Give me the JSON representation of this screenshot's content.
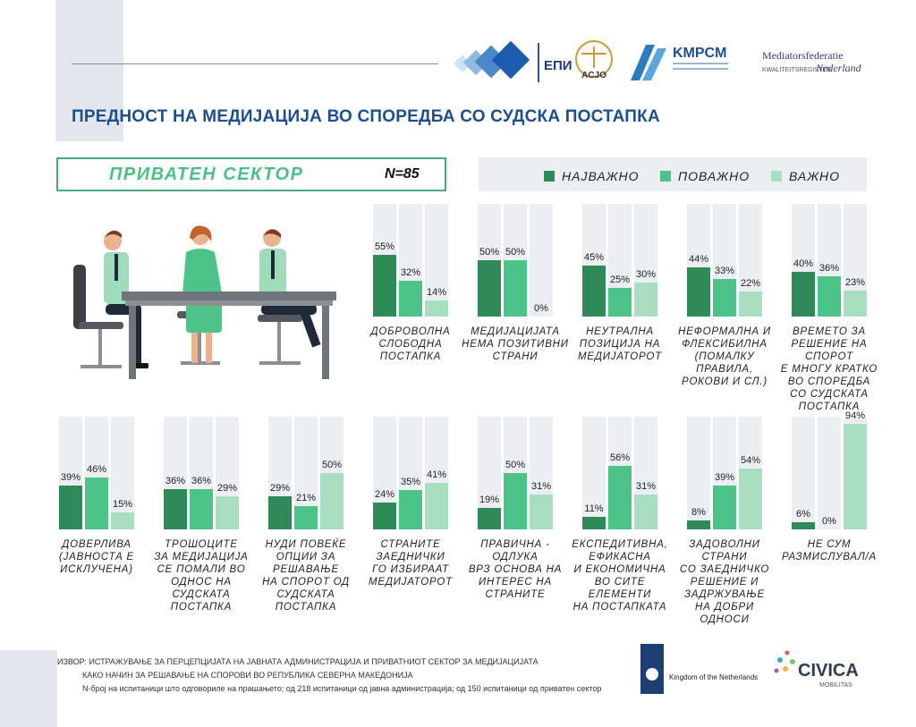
{
  "title": "ПРЕДНОСТ НА МЕДИЈАЦИЈА ВО СПОРЕДБА СО СУДСКА ПОСТАПКА",
  "sector": {
    "label": "ПРИВАТЕН СЕКТОР",
    "n": "N=85"
  },
  "logos": {
    "epi": "ЕПИ",
    "acjo": "ACJO",
    "kmrsm": "KMPCM",
    "mediators_1": "Mediatorsfederatie",
    "mediators_2": "Nederland",
    "mediators_3": "KWALITEITSREGISTER",
    "kingdom": "Kingdom of the Netherlands",
    "civica": "CIVICA",
    "mobilitas": "MOBILITAS"
  },
  "colors": {
    "najvazno": "#2e8b57",
    "povazno": "#4cc387",
    "vazno": "#a8dfc3",
    "track": "#eceef1",
    "title": "#1f4e8c"
  },
  "footer": {
    "source_label": "ИЗВОР:",
    "line1": "ИСТРАЖУВАЊЕ ЗА ПЕРЦЕПЦИЈАТА НА ЈАВНАТА АДМИНИСТРАЦИЈА И ПРИВАТНИОТ СЕКТОР ЗА МЕДИЈАЦИЈАТА",
    "line2": "КАКО НАЧИН ЗА РЕШАВАЊЕ НА СПОРОВИ ВО РЕПУБЛИКА СЕВЕРНА МАКЕДОНИЈА",
    "line3": "N-број на испитаници што одговориле на прашањето; од 218 испитаници од јавна администрација; од 150 испитаници од приватен сектор"
  },
  "chart_data": {
    "type": "bar",
    "ylim": [
      0,
      100
    ],
    "series_names": [
      "НАЈВАЖНО",
      "ПОВАЖНО",
      "ВАЖНО"
    ],
    "groups": [
      {
        "label": [
          "ДОБРОВОЛНА",
          "СЛОБОДНА",
          "ПОСТАПКА"
        ],
        "values": [
          55,
          32,
          14
        ]
      },
      {
        "label": [
          "МЕДИЈАЦИЈАТА",
          "НЕМА ПОЗИТИВНИ",
          "СТРАНИ"
        ],
        "values": [
          50,
          50,
          0
        ]
      },
      {
        "label": [
          "НЕУТРАЛНА",
          "ПОЗИЦИЈА НА",
          "МЕДИЈАТОРОТ"
        ],
        "values": [
          45,
          25,
          30
        ]
      },
      {
        "label": [
          "НЕФОРМАЛНА И",
          "ФЛЕКСИБИЛНА",
          "(ПОМАЛКУ",
          "ПРАВИЛА,",
          "РОКОВИ И СЛ.)"
        ],
        "values": [
          44,
          33,
          22
        ]
      },
      {
        "label": [
          "ВРЕМЕТО ЗА",
          "РЕШЕНИЕ НА СПОРОТ",
          "Е МНОГУ КРАТКО",
          "ВО СПОРЕДБА",
          "СО СУДСКАТА",
          "ПОСТАПКА"
        ],
        "values": [
          40,
          36,
          23
        ]
      },
      {
        "label": [
          "ДОВЕРЛИВА",
          "(ЈАВНОСТА Е",
          "ИСКЛУЧЕНА)"
        ],
        "values": [
          39,
          46,
          15
        ]
      },
      {
        "label": [
          "ТРОШОЦИТЕ",
          "ЗА МЕДИЈАЦИЈА",
          "СЕ ПОМАЛИ ВО",
          "ОДНОС НА СУДСКАТА",
          "ПОСТАПКА"
        ],
        "values": [
          36,
          36,
          29
        ]
      },
      {
        "label": [
          "НУДИ ПОВЕЌЕ",
          "ОПЦИИ ЗА",
          "РЕШАВАЊЕ",
          "НА СПОРОТ ОД",
          "СУДСКАТА",
          "ПОСТАПКА"
        ],
        "values": [
          29,
          21,
          50
        ]
      },
      {
        "label": [
          "СТРАНИТЕ",
          "ЗАЕДНИЧКИ",
          "ГО ИЗБИРААТ",
          "МЕДИЈАТОРОТ"
        ],
        "values": [
          24,
          35,
          41
        ]
      },
      {
        "label": [
          "ПРАВИЧНА -",
          "ОДЛУКА",
          "ВРЗ ОСНОВА НА",
          "ИНТЕРЕС НА",
          "СТРАНИТЕ"
        ],
        "values": [
          19,
          50,
          31
        ]
      },
      {
        "label": [
          "ЕКСПЕДИТИВНА,",
          "ЕФИКАСНА",
          "И ЕКОНОМИЧНА",
          "ВО СИТЕ ЕЛЕМЕНТИ",
          "НА ПОСТАПКАТА"
        ],
        "values": [
          11,
          56,
          31
        ]
      },
      {
        "label": [
          "ЗАДОВОЛНИ СТРАНИ",
          "СО ЗАЕДНИЧКО",
          "РЕШЕНИЕ И",
          "ЗАДРЖУВАЊЕ",
          "НА ДОБРИ ОДНОСИ"
        ],
        "values": [
          8,
          39,
          54
        ]
      },
      {
        "label": [
          "НЕ СУМ",
          "РАЗМИСЛУВАЛ/А"
        ],
        "values": [
          6,
          0,
          94
        ]
      }
    ]
  }
}
